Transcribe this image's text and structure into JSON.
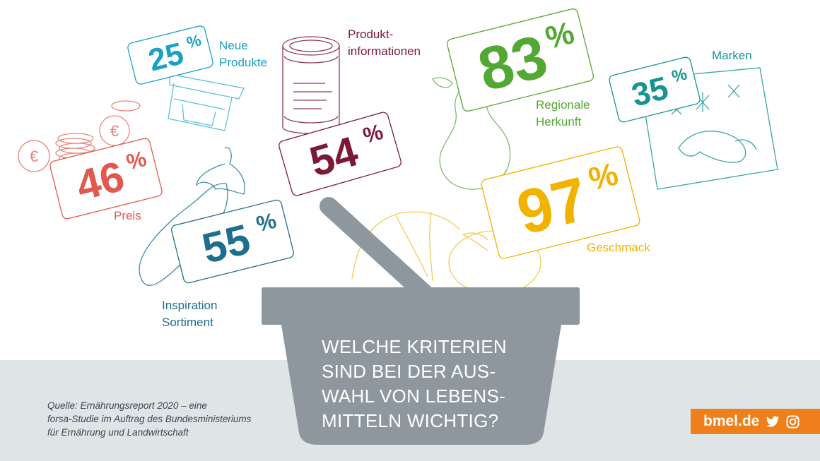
{
  "chart_data": {
    "type": "infographic",
    "title_lines": [
      "WELCHE KRITERIEN",
      "SIND BEI DER AUS-",
      "WAHL VON LEBENS-",
      "MITTELN WICHTIG?"
    ],
    "items": [
      {
        "label_lines": [
          "Neue",
          "Produkte"
        ],
        "value": 25,
        "color": "#1aa0c4"
      },
      {
        "label_lines": [
          "Produkt-",
          "informationen"
        ],
        "value": 54,
        "color": "#7b1a37"
      },
      {
        "label_lines": [
          "Regionale",
          "Herkunft"
        ],
        "value": 83,
        "color": "#52a832"
      },
      {
        "label_lines": [
          "Marken"
        ],
        "value": 35,
        "color": "#14958f"
      },
      {
        "label_lines": [
          "Preis"
        ],
        "value": 46,
        "color": "#e0594f"
      },
      {
        "label_lines": [
          "Inspiration",
          "Sortiment"
        ],
        "value": 55,
        "color": "#1f6e8c"
      },
      {
        "label_lines": [
          "Geschmack"
        ],
        "value": 97,
        "color": "#f2b200"
      }
    ],
    "value_unit": "%"
  },
  "colors": {
    "basket": "#8d979d",
    "footer_band": "#dfe4e6",
    "brand_bg": "#ee7f1a",
    "text_dark": "#3b4650"
  },
  "source": {
    "lines": [
      "Quelle: Ernährungsreport 2020 – eine",
      "forsa-Studie im Auftrag des Bundesministeriums",
      "für Ernährung und Landwirtschaft"
    ]
  },
  "brand": {
    "label": "bmel.de",
    "icons": [
      "twitter-icon",
      "instagram-icon"
    ]
  }
}
